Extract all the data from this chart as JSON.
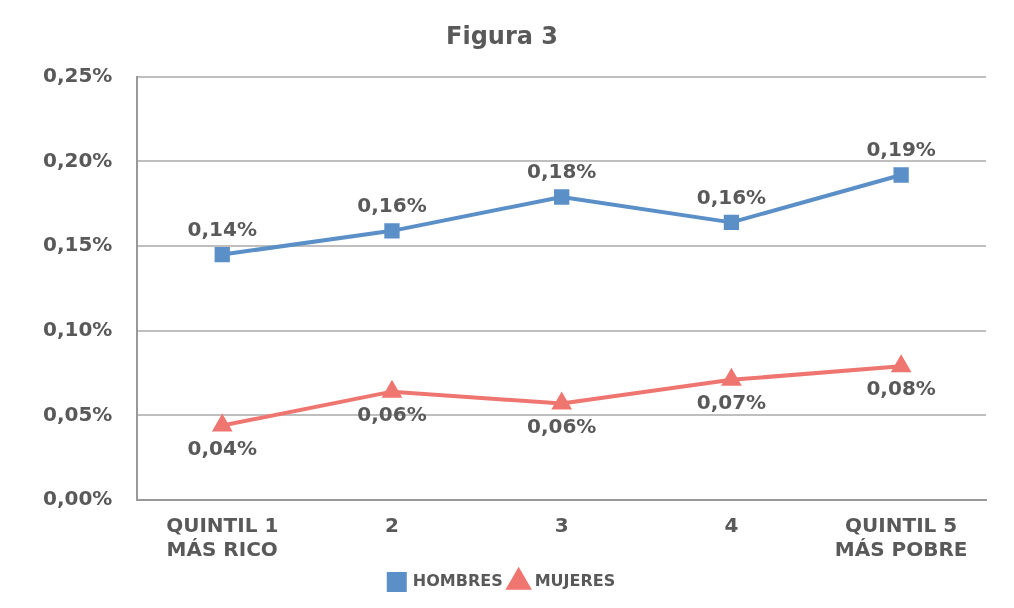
{
  "chart_data": {
    "type": "line",
    "title": "Figura 3",
    "categories": [
      "QUINTIL 1\nMÁS RICO",
      "2",
      "3",
      "4",
      "QUINTIL 5\nMÁS POBRE"
    ],
    "series": [
      {
        "name": "HOMBRES",
        "color": "#5b8fc7",
        "marker": "square",
        "values": [
          0.145,
          0.159,
          0.179,
          0.164,
          0.192
        ],
        "value_labels": [
          "0,14%",
          "0,16%",
          "0,18%",
          "0,16%",
          "0,19%"
        ]
      },
      {
        "name": "MUJERES",
        "color": "#ef7670",
        "marker": "triangle",
        "values": [
          0.044,
          0.064,
          0.057,
          0.071,
          0.079
        ],
        "value_labels": [
          "0,04%",
          "0,06%",
          "0,06%",
          "0,07%",
          "0,08%"
        ]
      }
    ],
    "ylim": [
      0,
      0.25
    ],
    "yticks": [
      {
        "value": 0,
        "label": "0,00%"
      },
      {
        "value": 0.05,
        "label": "0,05%"
      },
      {
        "value": 0.1,
        "label": "0,10%"
      },
      {
        "value": 0.15,
        "label": "0,15%"
      },
      {
        "value": 0.2,
        "label": "0,20%"
      },
      {
        "value": 0.25,
        "label": "0,25%"
      }
    ],
    "grid": "y",
    "legend": "bottom",
    "line_style": "solid"
  }
}
